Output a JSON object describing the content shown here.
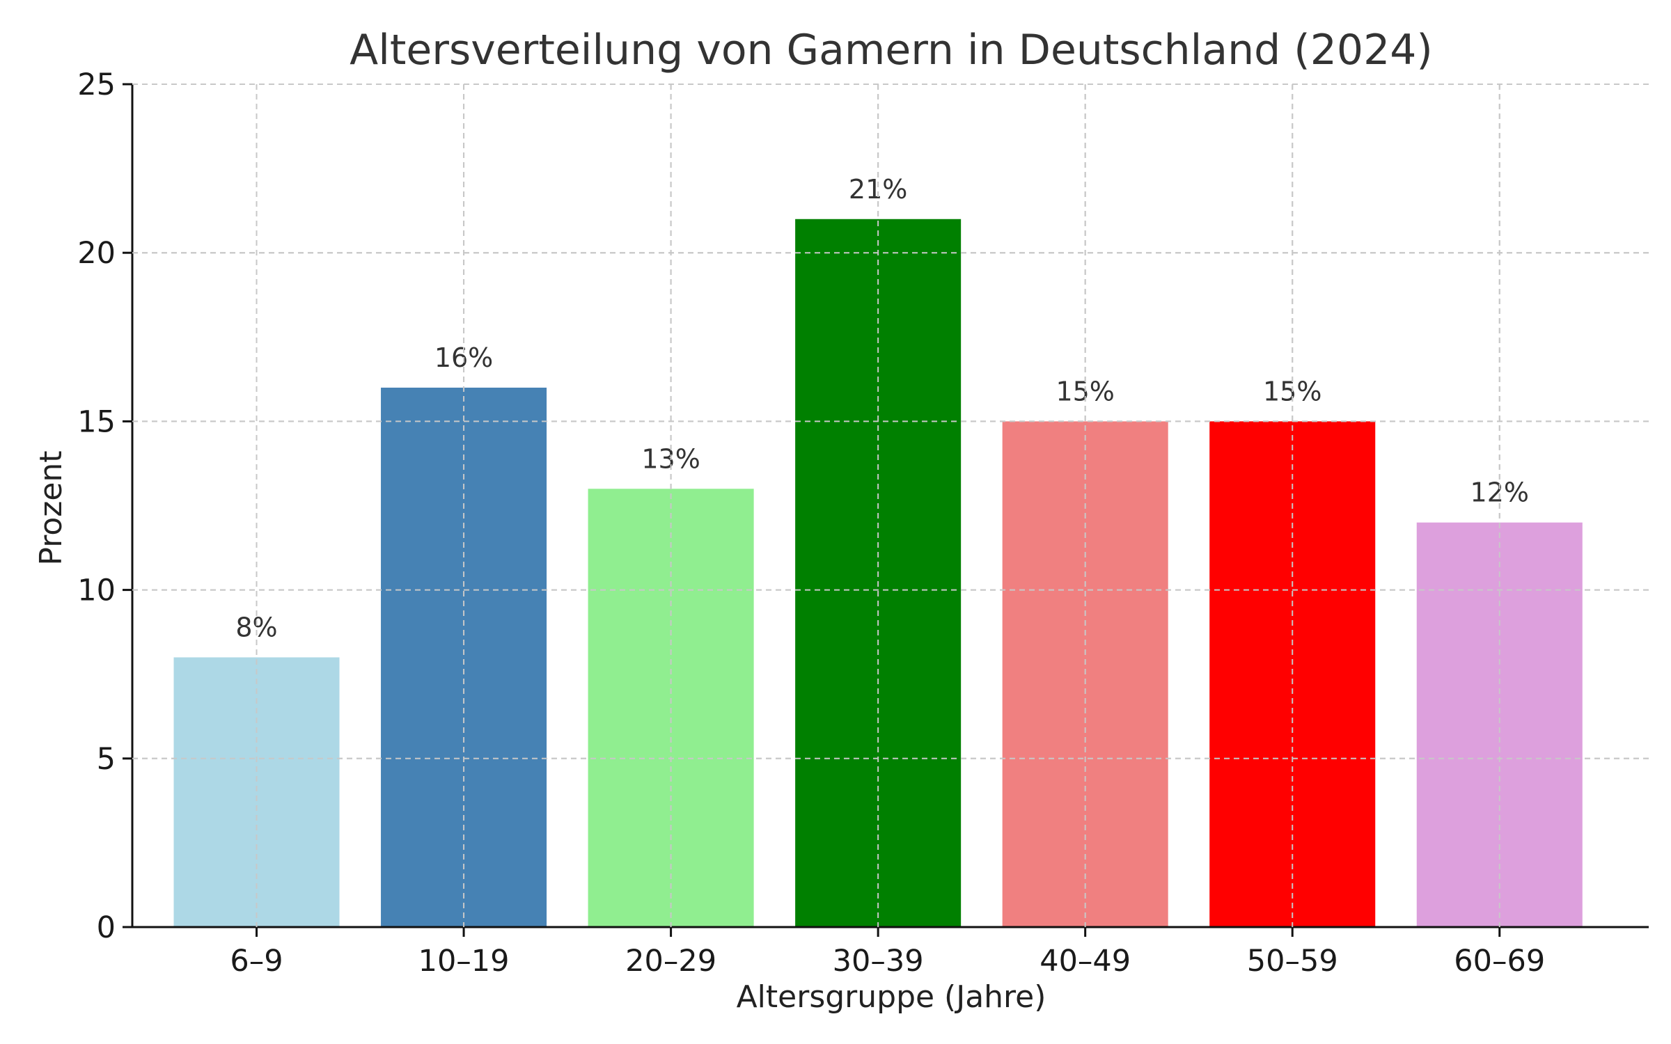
{
  "chart_data": {
    "type": "bar",
    "title": "Altersverteilung von Gamern in Deutschland (2024)",
    "xlabel": "Altersgruppe (Jahre)",
    "ylabel": "Prozent",
    "categories": [
      "6–9",
      "10–19",
      "20–29",
      "30–39",
      "40–49",
      "50–59",
      "60–69"
    ],
    "values": [
      8,
      16,
      13,
      21,
      15,
      15,
      12
    ],
    "value_labels": [
      "8%",
      "16%",
      "13%",
      "21%",
      "15%",
      "15%",
      "12%"
    ],
    "colors": [
      "#add8e6",
      "#4682b4",
      "#90ee90",
      "#008000",
      "#f08080",
      "#ff0000",
      "#dda0dd"
    ],
    "ylim": [
      0,
      25
    ],
    "yticks": [
      0,
      5,
      10,
      15,
      20,
      25
    ],
    "grid": true,
    "legend": "none"
  }
}
